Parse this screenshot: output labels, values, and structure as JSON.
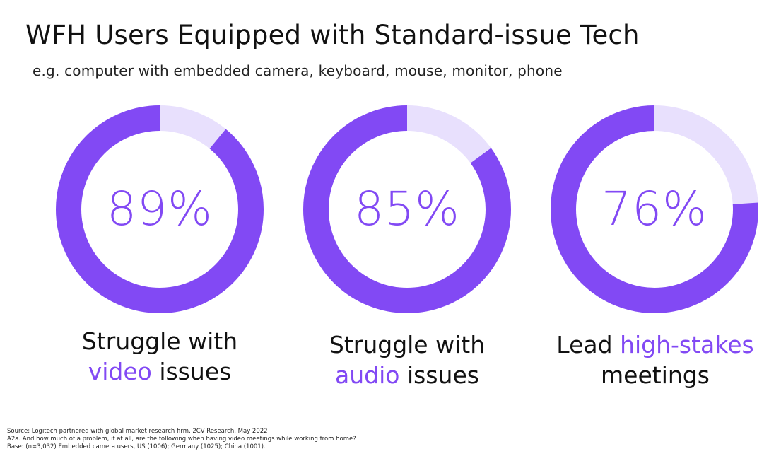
{
  "title": "WFH Users Equipped with Standard-issue Tech",
  "subtitle": "e.g. computer with embedded camera, keyboard, mouse, monitor, phone",
  "colors": {
    "accent": "#8249f4",
    "track": "#e8e0fd",
    "text": "#111111"
  },
  "chart_data": {
    "type": "pie",
    "variant": "donut",
    "charts": [
      {
        "value": 89,
        "value_label": "89%",
        "label_line1_plain": "Struggle with",
        "label_line2_accent": "video",
        "label_line2_plain": " issues"
      },
      {
        "value": 85,
        "value_label": "85%",
        "label_line1_plain": "Struggle with",
        "label_line2_accent": "audio",
        "label_line2_plain": " issues"
      },
      {
        "value": 76,
        "value_label": "76%",
        "label_line1_plain": "Lead ",
        "label_line1_accent": "high-stakes",
        "label_line2_plain": "meetings"
      }
    ]
  },
  "footnotes": {
    "source": "Source: Logitech partnered with global market research firm, 2CV Research, May 2022",
    "question": "A2a. And how much of a problem, if at all, are the following when having video meetings while working from home?",
    "base": "Base: (n=3,032) Embedded camera users, US (1006); Germany (1025); China (1001)."
  }
}
